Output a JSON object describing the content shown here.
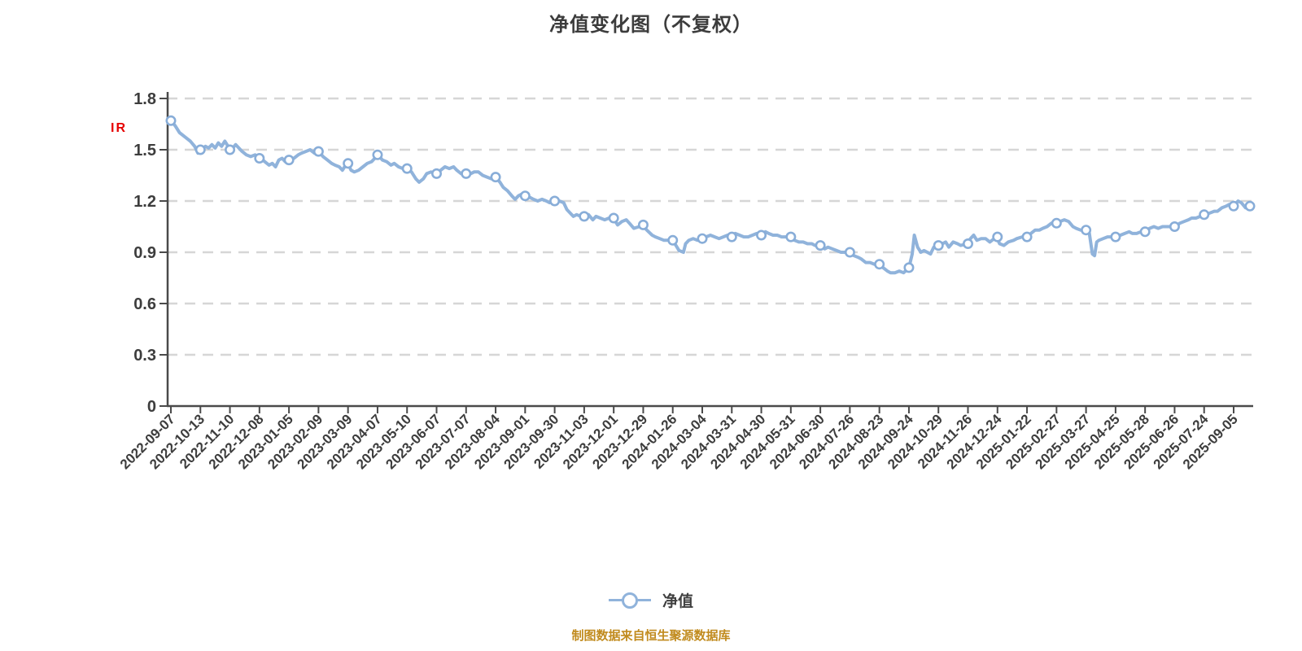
{
  "title": {
    "text": "净值变化图（不复权）"
  },
  "annotation": {
    "text": "IR",
    "color": "#e60000"
  },
  "legend": {
    "label": "净值"
  },
  "footer": {
    "text": "制图数据来自恒生聚源数据库",
    "color": "#c18b1e"
  },
  "chart_data": {
    "type": "line",
    "title": "净值变化图（不复权）",
    "series_name": "净值",
    "legend_position": "bottom",
    "grid": true,
    "ylim": [
      0,
      1.8
    ],
    "y_ticks": [
      0,
      0.3,
      0.6,
      0.9,
      1.2,
      1.5,
      1.8
    ],
    "y_tick_labels": [
      "0",
      "0.3",
      "0.6",
      "0.9",
      "1.2",
      "1.5",
      "1.8"
    ],
    "x_tick_labels": [
      "2022-09-07",
      "2022-10-13",
      "2022-11-10",
      "2022-12-08",
      "2023-01-05",
      "2023-02-09",
      "2023-03-09",
      "2023-04-07",
      "2023-05-10",
      "2023-06-07",
      "2023-07-07",
      "2023-08-04",
      "2023-09-01",
      "2023-09-30",
      "2023-11-03",
      "2023-12-01",
      "2023-12-29",
      "2024-01-26",
      "2024-03-04",
      "2024-03-31",
      "2024-04-30",
      "2024-05-31",
      "2024-06-30",
      "2024-07-26",
      "2024-08-23",
      "2024-09-24",
      "2024-10-29",
      "2024-11-26",
      "2024-12-24",
      "2025-01-22",
      "2025-02-27",
      "2025-03-27",
      "2025-04-25",
      "2025-05-28",
      "2025-06-26",
      "2025-07-24",
      "2025-09-05"
    ],
    "marker_values": [
      1.67,
      1.5,
      1.5,
      1.45,
      1.44,
      1.49,
      1.42,
      1.47,
      1.39,
      1.36,
      1.36,
      1.34,
      1.23,
      1.2,
      1.11,
      1.1,
      1.06,
      0.97,
      0.98,
      0.99,
      1.0,
      0.99,
      0.94,
      0.9,
      0.83,
      0.81,
      0.94,
      0.95,
      0.99,
      0.99,
      1.07,
      1.03,
      0.99,
      1.02,
      1.05,
      1.12,
      1.17
    ],
    "end_marker": {
      "f": 1.0,
      "value": 1.17
    },
    "line": [
      [
        0.0,
        1.67
      ],
      [
        0.004,
        1.64
      ],
      [
        0.008,
        1.6
      ],
      [
        0.014,
        1.57
      ],
      [
        0.018,
        1.55
      ],
      [
        0.022,
        1.52
      ],
      [
        0.025,
        1.48
      ],
      [
        0.028,
        1.5
      ],
      [
        0.032,
        1.52
      ],
      [
        0.035,
        1.51
      ],
      [
        0.038,
        1.53
      ],
      [
        0.041,
        1.51
      ],
      [
        0.044,
        1.54
      ],
      [
        0.047,
        1.52
      ],
      [
        0.05,
        1.55
      ],
      [
        0.053,
        1.52
      ],
      [
        0.056,
        1.5
      ],
      [
        0.06,
        1.53
      ],
      [
        0.063,
        1.51
      ],
      [
        0.066,
        1.49
      ],
      [
        0.07,
        1.47
      ],
      [
        0.074,
        1.46
      ],
      [
        0.078,
        1.47
      ],
      [
        0.081,
        1.45
      ],
      [
        0.083,
        1.45
      ],
      [
        0.087,
        1.43
      ],
      [
        0.091,
        1.41
      ],
      [
        0.094,
        1.42
      ],
      [
        0.097,
        1.4
      ],
      [
        0.1,
        1.44
      ],
      [
        0.103,
        1.45
      ],
      [
        0.106,
        1.43
      ],
      [
        0.11,
        1.44
      ],
      [
        0.114,
        1.45
      ],
      [
        0.118,
        1.47
      ],
      [
        0.121,
        1.48
      ],
      [
        0.125,
        1.49
      ],
      [
        0.129,
        1.5
      ],
      [
        0.133,
        1.48
      ],
      [
        0.137,
        1.49
      ],
      [
        0.141,
        1.46
      ],
      [
        0.145,
        1.44
      ],
      [
        0.149,
        1.42
      ],
      [
        0.152,
        1.41
      ],
      [
        0.156,
        1.4
      ],
      [
        0.159,
        1.38
      ],
      [
        0.161,
        1.4
      ],
      [
        0.164,
        1.42
      ],
      [
        0.167,
        1.38
      ],
      [
        0.17,
        1.37
      ],
      [
        0.174,
        1.38
      ],
      [
        0.178,
        1.4
      ],
      [
        0.182,
        1.42
      ],
      [
        0.186,
        1.43
      ],
      [
        0.189,
        1.45
      ],
      [
        0.192,
        1.47
      ],
      [
        0.196,
        1.44
      ],
      [
        0.2,
        1.43
      ],
      [
        0.204,
        1.41
      ],
      [
        0.207,
        1.42
      ],
      [
        0.211,
        1.4
      ],
      [
        0.215,
        1.39
      ],
      [
        0.219,
        1.39
      ],
      [
        0.223,
        1.37
      ],
      [
        0.227,
        1.33
      ],
      [
        0.23,
        1.31
      ],
      [
        0.234,
        1.33
      ],
      [
        0.237,
        1.36
      ],
      [
        0.241,
        1.37
      ],
      [
        0.244,
        1.36
      ],
      [
        0.247,
        1.36
      ],
      [
        0.25,
        1.38
      ],
      [
        0.254,
        1.4
      ],
      [
        0.258,
        1.39
      ],
      [
        0.262,
        1.4
      ],
      [
        0.265,
        1.38
      ],
      [
        0.269,
        1.36
      ],
      [
        0.272,
        1.35
      ],
      [
        0.274,
        1.36
      ],
      [
        0.278,
        1.36
      ],
      [
        0.281,
        1.37
      ],
      [
        0.285,
        1.37
      ],
      [
        0.289,
        1.35
      ],
      [
        0.293,
        1.34
      ],
      [
        0.297,
        1.33
      ],
      [
        0.301,
        1.34
      ],
      [
        0.305,
        1.31
      ],
      [
        0.308,
        1.28
      ],
      [
        0.312,
        1.26
      ],
      [
        0.316,
        1.23
      ],
      [
        0.319,
        1.21
      ],
      [
        0.322,
        1.23
      ],
      [
        0.325,
        1.24
      ],
      [
        0.329,
        1.23
      ],
      [
        0.333,
        1.22
      ],
      [
        0.336,
        1.21
      ],
      [
        0.34,
        1.2
      ],
      [
        0.344,
        1.21
      ],
      [
        0.348,
        1.2
      ],
      [
        0.351,
        1.19
      ],
      [
        0.356,
        1.2
      ],
      [
        0.36,
        1.2
      ],
      [
        0.364,
        1.19
      ],
      [
        0.367,
        1.15
      ],
      [
        0.37,
        1.13
      ],
      [
        0.373,
        1.11
      ],
      [
        0.376,
        1.12
      ],
      [
        0.38,
        1.11
      ],
      [
        0.383,
        1.11
      ],
      [
        0.387,
        1.12
      ],
      [
        0.391,
        1.09
      ],
      [
        0.394,
        1.11
      ],
      [
        0.398,
        1.1
      ],
      [
        0.402,
        1.09
      ],
      [
        0.406,
        1.1
      ],
      [
        0.41,
        1.1
      ],
      [
        0.414,
        1.06
      ],
      [
        0.418,
        1.08
      ],
      [
        0.422,
        1.09
      ],
      [
        0.425,
        1.07
      ],
      [
        0.429,
        1.04
      ],
      [
        0.434,
        1.05
      ],
      [
        0.437,
        1.06
      ],
      [
        0.441,
        1.03
      ],
      [
        0.446,
        1.0
      ],
      [
        0.449,
        0.99
      ],
      [
        0.453,
        0.98
      ],
      [
        0.457,
        0.97
      ],
      [
        0.461,
        0.97
      ],
      [
        0.465,
        0.97
      ],
      [
        0.468,
        0.94
      ],
      [
        0.471,
        0.91
      ],
      [
        0.475,
        0.9
      ],
      [
        0.477,
        0.95
      ],
      [
        0.48,
        0.97
      ],
      [
        0.484,
        0.98
      ],
      [
        0.488,
        0.97
      ],
      [
        0.492,
        0.98
      ],
      [
        0.496,
        0.99
      ],
      [
        0.5,
        1.0
      ],
      [
        0.504,
        0.99
      ],
      [
        0.508,
        0.98
      ],
      [
        0.512,
        0.99
      ],
      [
        0.516,
        1.0
      ],
      [
        0.52,
        0.99
      ],
      [
        0.523,
        1.01
      ],
      [
        0.527,
        1.0
      ],
      [
        0.531,
        0.99
      ],
      [
        0.535,
        0.99
      ],
      [
        0.539,
        1.0
      ],
      [
        0.543,
        1.01
      ],
      [
        0.547,
        1.0
      ],
      [
        0.551,
        1.02
      ],
      [
        0.554,
        1.01
      ],
      [
        0.558,
        1.0
      ],
      [
        0.562,
        1.0
      ],
      [
        0.566,
        0.99
      ],
      [
        0.57,
        0.99
      ],
      [
        0.575,
        0.99
      ],
      [
        0.578,
        0.97
      ],
      [
        0.582,
        0.96
      ],
      [
        0.586,
        0.96
      ],
      [
        0.59,
        0.95
      ],
      [
        0.594,
        0.95
      ],
      [
        0.597,
        0.94
      ],
      [
        0.602,
        0.94
      ],
      [
        0.606,
        0.92
      ],
      [
        0.609,
        0.93
      ],
      [
        0.613,
        0.92
      ],
      [
        0.617,
        0.91
      ],
      [
        0.621,
        0.9
      ],
      [
        0.624,
        0.9
      ],
      [
        0.629,
        0.9
      ],
      [
        0.633,
        0.88
      ],
      [
        0.637,
        0.87
      ],
      [
        0.64,
        0.86
      ],
      [
        0.644,
        0.84
      ],
      [
        0.648,
        0.84
      ],
      [
        0.652,
        0.83
      ],
      [
        0.656,
        0.83
      ],
      [
        0.66,
        0.81
      ],
      [
        0.664,
        0.79
      ],
      [
        0.667,
        0.78
      ],
      [
        0.671,
        0.78
      ],
      [
        0.675,
        0.79
      ],
      [
        0.679,
        0.78
      ],
      [
        0.684,
        0.81
      ],
      [
        0.687,
        0.89
      ],
      [
        0.689,
        1.0
      ],
      [
        0.692,
        0.93
      ],
      [
        0.695,
        0.9
      ],
      [
        0.698,
        0.91
      ],
      [
        0.701,
        0.9
      ],
      [
        0.704,
        0.89
      ],
      [
        0.707,
        0.93
      ],
      [
        0.711,
        0.94
      ],
      [
        0.715,
        0.95
      ],
      [
        0.718,
        0.96
      ],
      [
        0.721,
        0.93
      ],
      [
        0.725,
        0.96
      ],
      [
        0.729,
        0.95
      ],
      [
        0.732,
        0.94
      ],
      [
        0.738,
        0.95
      ],
      [
        0.741,
        0.98
      ],
      [
        0.744,
        1.0
      ],
      [
        0.747,
        0.97
      ],
      [
        0.751,
        0.98
      ],
      [
        0.755,
        0.98
      ],
      [
        0.759,
        0.96
      ],
      [
        0.765,
        0.99
      ],
      [
        0.768,
        0.95
      ],
      [
        0.772,
        0.94
      ],
      [
        0.776,
        0.96
      ],
      [
        0.781,
        0.97
      ],
      [
        0.784,
        0.98
      ],
      [
        0.789,
        0.99
      ],
      [
        0.793,
        0.99
      ],
      [
        0.797,
        1.01
      ],
      [
        0.801,
        1.03
      ],
      [
        0.805,
        1.03
      ],
      [
        0.808,
        1.04
      ],
      [
        0.812,
        1.05
      ],
      [
        0.816,
        1.07
      ],
      [
        0.821,
        1.07
      ],
      [
        0.824,
        1.08
      ],
      [
        0.828,
        1.09
      ],
      [
        0.832,
        1.08
      ],
      [
        0.836,
        1.05
      ],
      [
        0.839,
        1.04
      ],
      [
        0.843,
        1.03
      ],
      [
        0.848,
        1.03
      ],
      [
        0.851,
        1.02
      ],
      [
        0.854,
        0.89
      ],
      [
        0.856,
        0.88
      ],
      [
        0.858,
        0.96
      ],
      [
        0.86,
        0.97
      ],
      [
        0.864,
        0.98
      ],
      [
        0.868,
        0.99
      ],
      [
        0.872,
        0.99
      ],
      [
        0.876,
        0.99
      ],
      [
        0.88,
        1.0
      ],
      [
        0.884,
        1.01
      ],
      [
        0.888,
        1.02
      ],
      [
        0.891,
        1.01
      ],
      [
        0.895,
        1.01
      ],
      [
        0.899,
        1.02
      ],
      [
        0.904,
        1.02
      ],
      [
        0.907,
        1.04
      ],
      [
        0.911,
        1.05
      ],
      [
        0.915,
        1.04
      ],
      [
        0.919,
        1.05
      ],
      [
        0.922,
        1.05
      ],
      [
        0.927,
        1.05
      ],
      [
        0.931,
        1.05
      ],
      [
        0.935,
        1.07
      ],
      [
        0.939,
        1.08
      ],
      [
        0.943,
        1.09
      ],
      [
        0.946,
        1.1
      ],
      [
        0.95,
        1.1
      ],
      [
        0.954,
        1.11
      ],
      [
        0.959,
        1.12
      ],
      [
        0.963,
        1.13
      ],
      [
        0.967,
        1.14
      ],
      [
        0.97,
        1.14
      ],
      [
        0.974,
        1.16
      ],
      [
        0.978,
        1.17
      ],
      [
        0.981,
        1.18
      ],
      [
        0.985,
        1.17
      ],
      [
        0.989,
        1.2
      ],
      [
        0.992,
        1.19
      ],
      [
        0.996,
        1.16
      ],
      [
        1.0,
        1.17
      ]
    ],
    "colors": {
      "line": "#90b3db",
      "marker_stroke": "#88add8",
      "marker_fill": "#ffffff",
      "axis": "#4a4a4a",
      "labels": "#3d3d3d",
      "grid": "#d6d6d6"
    }
  }
}
